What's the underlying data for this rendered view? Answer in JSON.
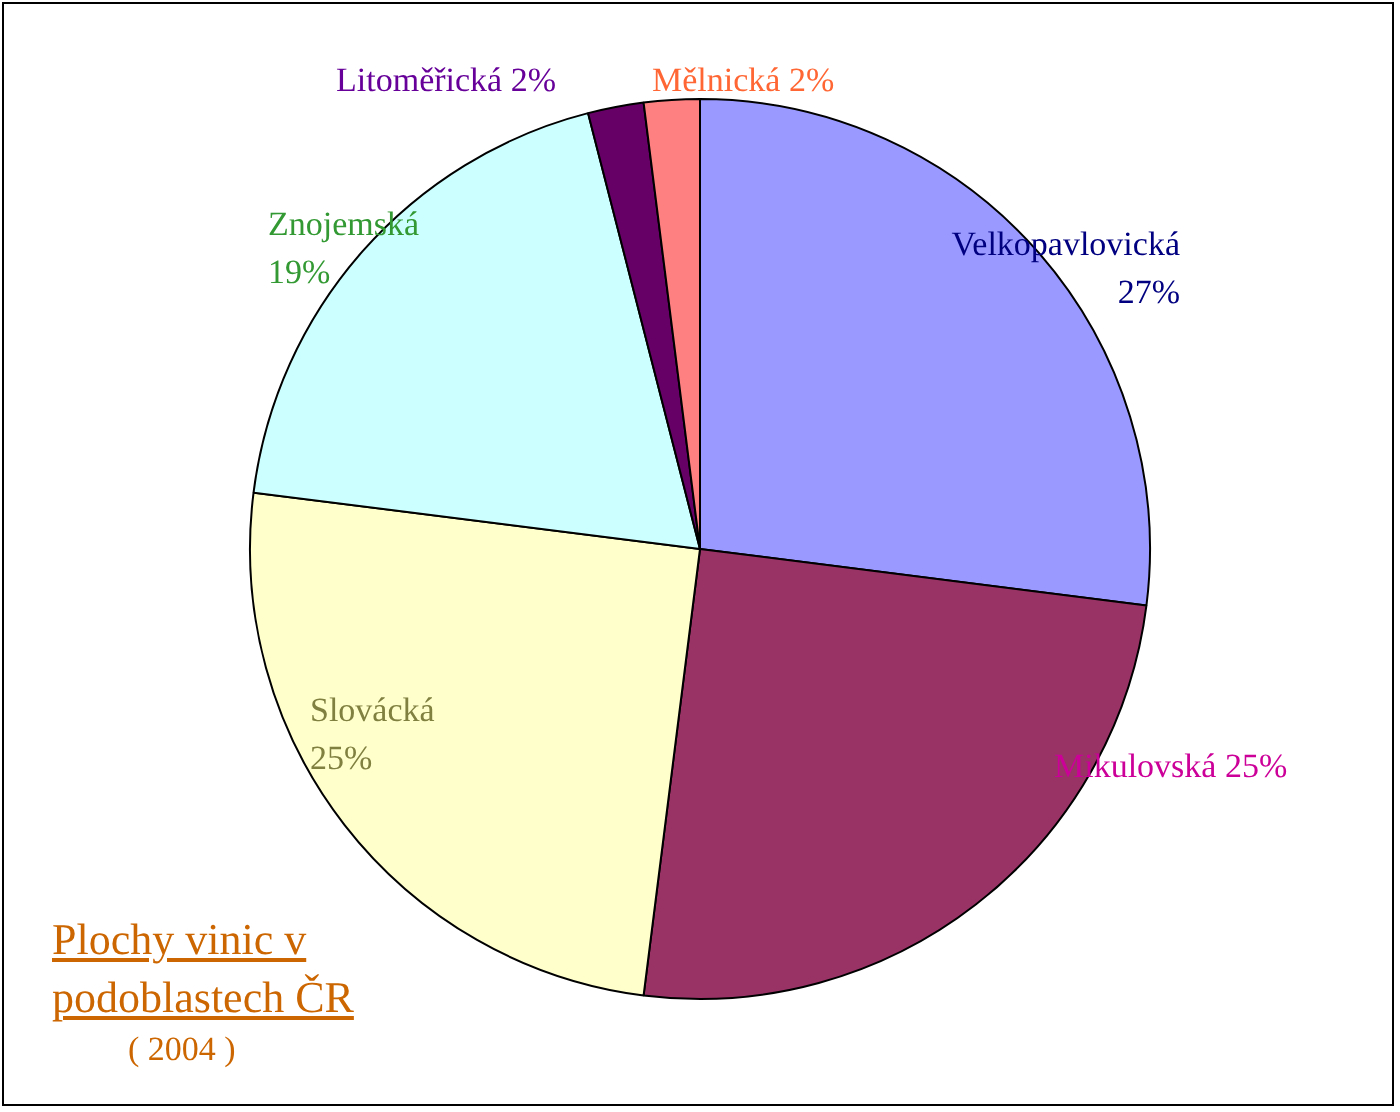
{
  "chart_data": {
    "type": "pie",
    "title": "Plochy vinic v podoblastech ČR",
    "subtitle": "( 2004 )",
    "categories": [
      "Velkopavlovická",
      "Mikulovská",
      "Slovácká",
      "Znojemská",
      "Litoměřická",
      "Mělnická"
    ],
    "values": [
      27,
      25,
      25,
      19,
      2,
      2
    ],
    "value_labels": [
      "27%",
      "25%",
      "25%",
      "19%",
      "2%",
      "2%"
    ],
    "colors": [
      "#9999ff",
      "#993366",
      "#ffffcc",
      "#ccffff",
      "#660066",
      "#ff8080"
    ],
    "legend": false
  }
}
